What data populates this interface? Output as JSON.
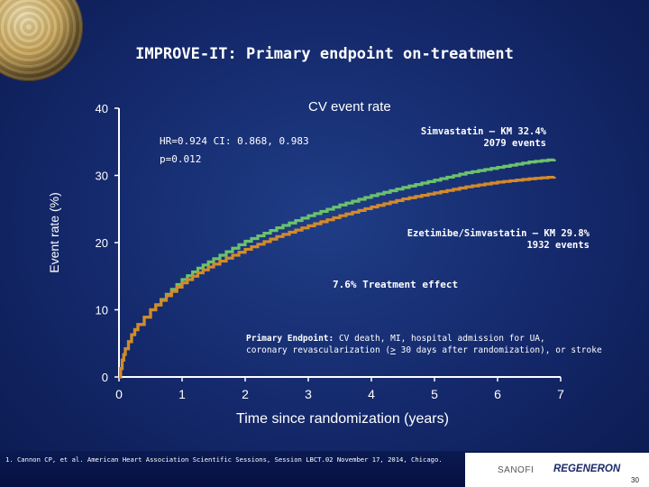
{
  "slide": {
    "title": "IMPROVE-IT: Primary endpoint on-treatment",
    "citation": "1. Cannon CP,  et al. American Heart Association Scientific Sessions, Session LBCT.02  November 17, 2014, Chicago.",
    "page_number": "30",
    "logos": [
      "SANOFI",
      "REGENERON"
    ]
  },
  "annotations": {
    "cv": "CV event rate",
    "hr": "HR=0.924 CI: 0.868, 0.983",
    "p": "p=0.012",
    "simva_1": "Simvastatin — KM 32.4%",
    "simva_2": "2079 events",
    "ezet_1": "Ezetimibe/Simvastatin — KM 29.8%",
    "ezet_2": "1932 events",
    "effect": "7.6% Treatment effect",
    "endpoint_bold": "Primary Endpoint:",
    "endpoint_1": " CV death, MI, hospital admission for UA,",
    "endpoint_2a": "coronary revascularization (",
    "endpoint_2u": ">",
    "endpoint_2b": " 30 days after randomization), or stroke"
  },
  "chart_data": {
    "type": "line",
    "title": "IMPROVE-IT: Primary endpoint on-treatment",
    "xlabel": "Time since randomization (years)",
    "ylabel": "Event rate (%)",
    "xlim": [
      0,
      7
    ],
    "ylim": [
      0,
      40
    ],
    "xticks": [
      0,
      1,
      2,
      3,
      4,
      5,
      6,
      7
    ],
    "yticks": [
      0,
      10,
      20,
      30,
      40
    ],
    "grid": false,
    "series": [
      {
        "name": "Simvastatin",
        "color": "#6cc26c",
        "x": [
          0,
          0.05,
          0.1,
          0.2,
          0.3,
          0.5,
          0.75,
          1,
          1.25,
          1.5,
          2,
          2.5,
          3,
          3.5,
          4,
          4.5,
          5,
          5.5,
          6,
          6.5,
          6.9
        ],
        "y": [
          0,
          2.5,
          4.2,
          6.3,
          7.8,
          10.0,
          12.3,
          14.5,
          16.2,
          17.6,
          20.2,
          22.2,
          24.0,
          25.6,
          27.0,
          28.2,
          29.3,
          30.4,
          31.2,
          32.0,
          32.4
        ]
      },
      {
        "name": "Ezetimibe/Simvastatin",
        "color": "#d48a2a",
        "x": [
          0,
          0.05,
          0.1,
          0.2,
          0.3,
          0.5,
          0.75,
          1,
          1.25,
          1.5,
          2,
          2.5,
          3,
          3.5,
          4,
          4.5,
          5,
          5.5,
          6,
          6.5,
          6.9
        ],
        "y": [
          0,
          2.5,
          4.2,
          6.3,
          7.8,
          10.0,
          12.1,
          14.0,
          15.5,
          16.8,
          19.0,
          20.9,
          22.5,
          24.0,
          25.3,
          26.5,
          27.4,
          28.3,
          29.0,
          29.5,
          29.8
        ]
      }
    ]
  }
}
